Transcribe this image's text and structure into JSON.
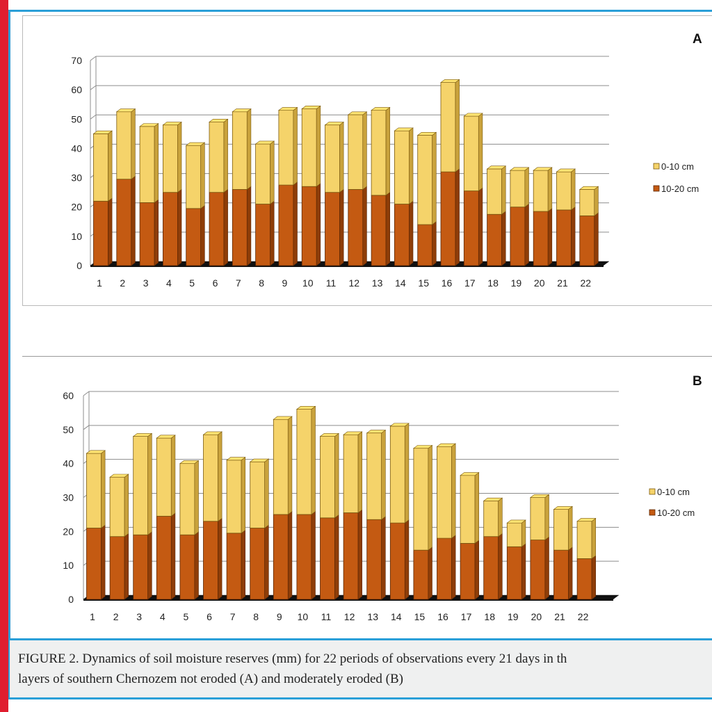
{
  "caption": {
    "line1": "FIGURE 2. Dynamics of soil moisture reserves (mm) for 22 periods of observations every 21 days in th",
    "line2": "layers of southern Chernozem not eroded (A) and moderately eroded (B)"
  },
  "colors": {
    "top_series": "#f5d36a",
    "top_series_side": "#c9a23c",
    "bottom_series": "#c45a12",
    "bottom_series_side": "#8e3d08",
    "grid": "#8c8c8c",
    "floor": "#111111",
    "frame": "#2a9fd8",
    "accent": "#e01e2f"
  },
  "chart_data": [
    {
      "type": "bar",
      "stacked": true,
      "three_d": true,
      "panel_label": "A",
      "categories": [
        "1",
        "2",
        "3",
        "4",
        "5",
        "6",
        "7",
        "8",
        "9",
        "10",
        "11",
        "12",
        "13",
        "14",
        "15",
        "16",
        "17",
        "18",
        "19",
        "20",
        "21",
        "22"
      ],
      "series": [
        {
          "name": "10-20 cm",
          "values": [
            22,
            29.5,
            21.5,
            25,
            19.5,
            25,
            26,
            21,
            27.5,
            27,
            25,
            26,
            24,
            21,
            14,
            32,
            25.5,
            17.5,
            20,
            18.5,
            19,
            17
          ]
        },
        {
          "name": "0-10 cm",
          "values": [
            23,
            23,
            26,
            23,
            21.5,
            24,
            26.5,
            20.5,
            25.5,
            26.5,
            23,
            25.5,
            29,
            25,
            30.5,
            30.5,
            25.5,
            15.5,
            12.5,
            14,
            13,
            9
          ]
        }
      ],
      "ylim": [
        0,
        70
      ],
      "yticks": [
        "0",
        "10",
        "20",
        "30",
        "40",
        "50",
        "60",
        "70"
      ],
      "grid": true,
      "legend": {
        "placement": "right",
        "entries": [
          "0-10 cm",
          "10-20 cm"
        ]
      }
    },
    {
      "type": "bar",
      "stacked": true,
      "three_d": true,
      "panel_label": "B",
      "categories": [
        "1",
        "2",
        "3",
        "4",
        "5",
        "6",
        "7",
        "8",
        "9",
        "10",
        "11",
        "12",
        "13",
        "14",
        "15",
        "16",
        "17",
        "18",
        "19",
        "20",
        "21",
        "22"
      ],
      "series": [
        {
          "name": "10-20 cm",
          "values": [
            21,
            18.5,
            19,
            24.5,
            19,
            23,
            19.5,
            21,
            25,
            25,
            24,
            25.5,
            23.5,
            22.5,
            14.5,
            18,
            16.5,
            18.5,
            15.5,
            17.5,
            14.5,
            12
          ]
        },
        {
          "name": "0-10 cm",
          "values": [
            22,
            17.5,
            29,
            23,
            21,
            25.5,
            21.5,
            19.5,
            28,
            31,
            24,
            23,
            25.5,
            28.5,
            30,
            27,
            20,
            10.5,
            7,
            12.5,
            12,
            11
          ]
        }
      ],
      "ylim": [
        0,
        60
      ],
      "yticks": [
        "0",
        "10",
        "20",
        "30",
        "40",
        "50",
        "60"
      ],
      "grid": true,
      "legend": {
        "placement": "right",
        "entries": [
          "0-10 cm",
          "10-20 cm"
        ]
      }
    }
  ]
}
